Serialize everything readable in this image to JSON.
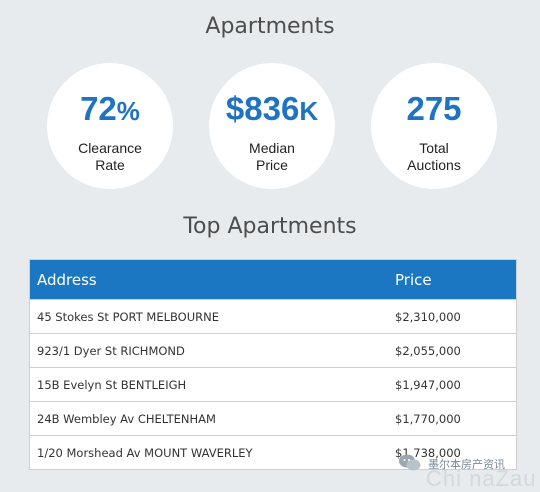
{
  "page": {
    "title": "Apartments",
    "section_title": "Top Apartments"
  },
  "stats": [
    {
      "value": "72",
      "unit": "%",
      "label_line1": "Clearance",
      "label_line2": "Rate"
    },
    {
      "value": "$836",
      "unit": "K",
      "label_line1": "Median",
      "label_line2": "Price"
    },
    {
      "value": "275",
      "unit": "",
      "label_line1": "Total",
      "label_line2": "Auctions"
    }
  ],
  "table": {
    "headers": {
      "address": "Address",
      "price": "Price"
    },
    "rows": [
      {
        "address": "45 Stokes St PORT MELBOURNE",
        "price": "$2,310,000"
      },
      {
        "address": "923/1 Dyer St RICHMOND",
        "price": "$2,055,000"
      },
      {
        "address": "15B Evelyn St BENTLEIGH",
        "price": "$1,947,000"
      },
      {
        "address": "24B Wembley Av CHELTENHAM",
        "price": "$1,770,000"
      },
      {
        "address": "1/20 Morshead Av MOUNT WAVERLEY",
        "price": "$1,738,000"
      }
    ]
  },
  "watermark": {
    "text": "墨尔本房产资讯",
    "big_text": "Chi naZau",
    "icon": "wechat-icon"
  },
  "colors": {
    "accent": "#1f73c2",
    "header_bg": "#1c77c3",
    "page_bg": "#e7ebed"
  }
}
